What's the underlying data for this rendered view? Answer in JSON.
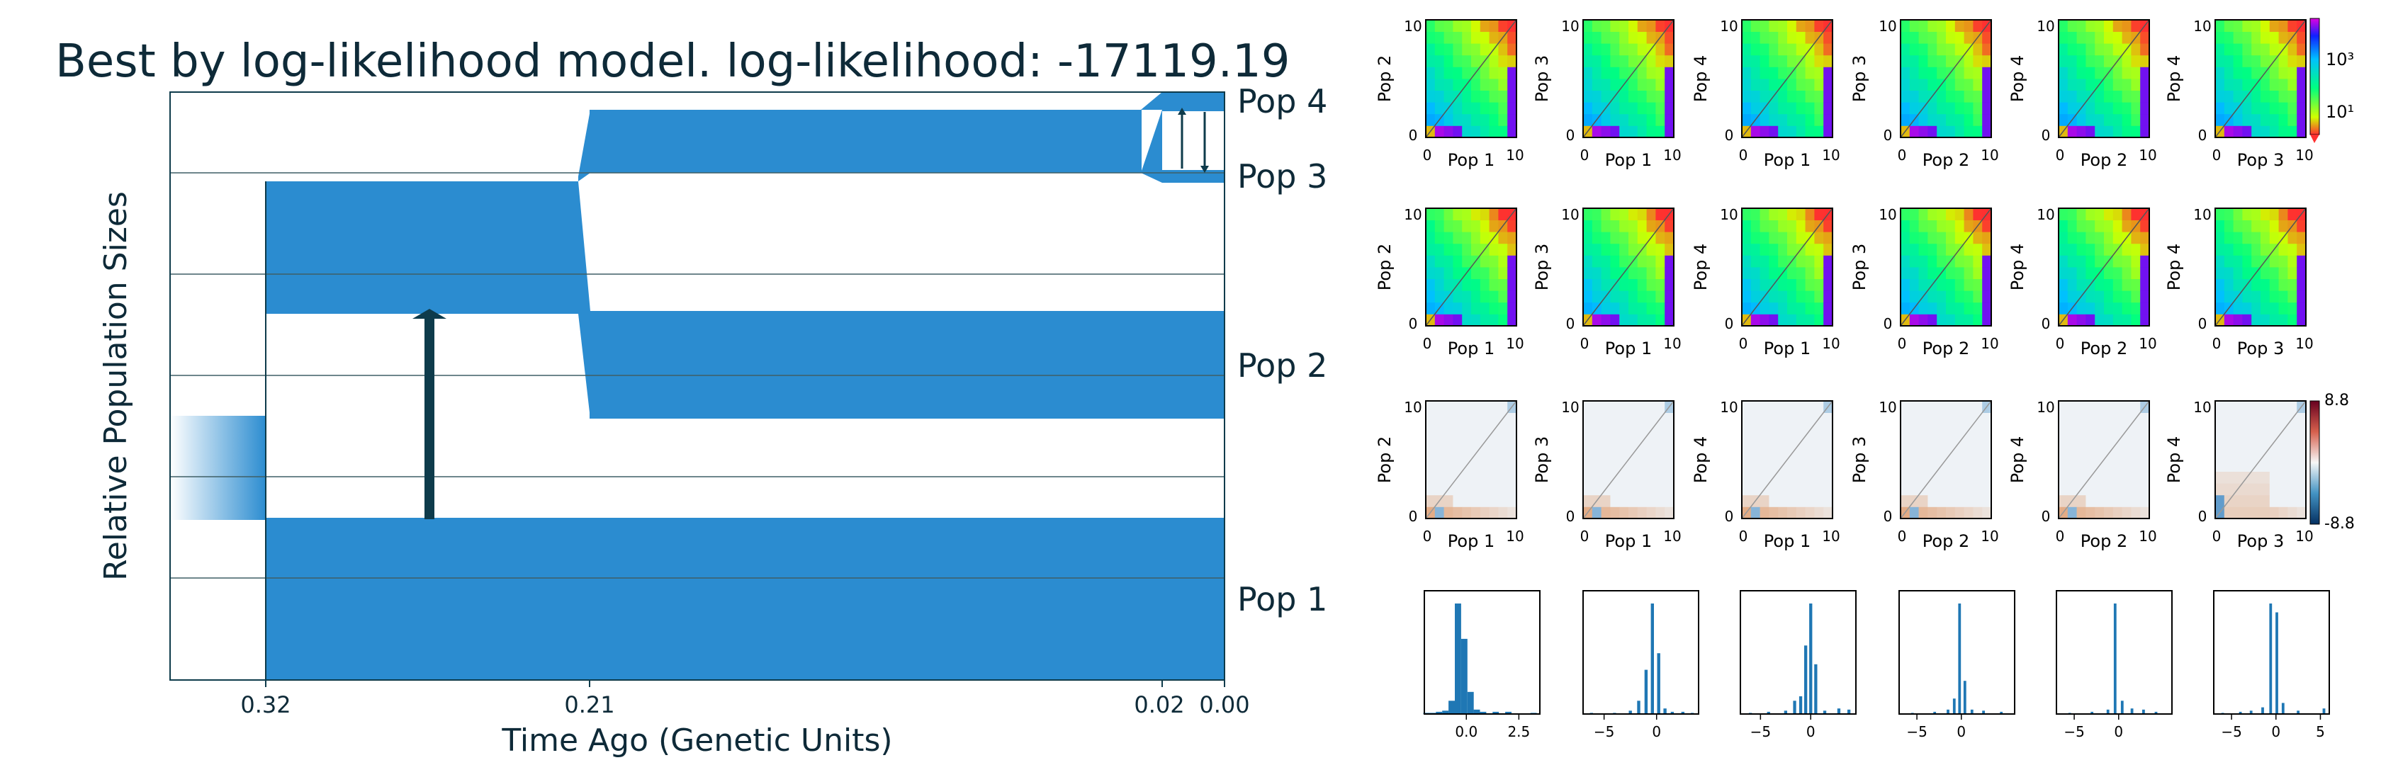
{
  "colors": {
    "population": "#2b8cd0",
    "migration_arrow": "#0e3b4b",
    "grid_line": "#3f5f66",
    "axis": "#0e3b4b",
    "panel_edge": "#000000",
    "histogram_bar": "#1f77b4",
    "resid_neg": "#2166ac",
    "resid_pos": "#f4a582"
  },
  "chart_data": [
    {
      "type": "area",
      "title": "Best by log-likelihood model. log-likelihood: -17119.19",
      "xlabel": "Time Ago (Genetic Units)",
      "ylabel": "Relative Population Sizes",
      "x_ticks": [
        "0.32",
        "0.21",
        "0.02",
        "0.00"
      ],
      "populations": [
        "Pop 4",
        "Pop 3",
        "Pop 2",
        "Pop 1"
      ],
      "epochs": [
        {
          "start": 0.32,
          "end": 0.21,
          "sizes": {
            "Pop 1": 1.0,
            "Pop 2": 1.0
          },
          "merged_into": "Pop 1"
        },
        {
          "start": 0.21,
          "end": 0.02,
          "sizes": {
            "Pop 1": 1.0,
            "Pop 2": 1.0,
            "Pop 3": 0.6
          }
        },
        {
          "start": 0.02,
          "end": 0.0,
          "sizes": {
            "Pop 1": 1.0,
            "Pop 2": 1.0,
            "Pop 3": 0.1,
            "Pop 4": 0.15
          }
        }
      ],
      "migration_arrows": [
        {
          "time": 0.27,
          "from": "Pop 1",
          "to": "Pop 2"
        },
        {
          "time": 0.01,
          "from": "Pop 3",
          "to": "Pop 4"
        },
        {
          "time": 0.004,
          "from": "Pop 4",
          "to": "Pop 3"
        }
      ]
    },
    {
      "type": "heatmap",
      "panel_grid": {
        "rows": 3,
        "cols": 6
      },
      "row_roles": [
        "data",
        "model",
        "residuals"
      ],
      "pairs": [
        {
          "x": "Pop 1",
          "y": "Pop 2"
        },
        {
          "x": "Pop 1",
          "y": "Pop 3"
        },
        {
          "x": "Pop 1",
          "y": "Pop 4"
        },
        {
          "x": "Pop 2",
          "y": "Pop 3"
        },
        {
          "x": "Pop 2",
          "y": "Pop 4"
        },
        {
          "x": "Pop 3",
          "y": "Pop 4"
        }
      ],
      "axis_ticks": [
        "0",
        "10"
      ],
      "colorbar_sfs": {
        "scale": "log",
        "tick_labels": [
          "10³",
          "10¹"
        ]
      },
      "colorbar_resid": {
        "tick_labels": [
          "8.8",
          "-8.8"
        ],
        "range": [
          -8.8,
          8.8
        ]
      }
    },
    {
      "type": "bar",
      "title": "",
      "panels": [
        {
          "ticks": [
            "0.0",
            "2.5"
          ],
          "xlim": [
            -2.0,
            3.5
          ],
          "bins": [
            [
              -1.9,
              0.01
            ],
            [
              -1.6,
              0.01
            ],
            [
              -1.3,
              0.02
            ],
            [
              -1.0,
              0.03
            ],
            [
              -0.7,
              0.12
            ],
            [
              -0.4,
              1.0
            ],
            [
              -0.1,
              0.68
            ],
            [
              0.2,
              0.2
            ],
            [
              0.5,
              0.04
            ],
            [
              0.8,
              0.02
            ],
            [
              1.4,
              0.02
            ],
            [
              2.0,
              0.02
            ],
            [
              3.2,
              0.01
            ]
          ]
        },
        {
          "ticks": [
            "-5",
            "0"
          ],
          "xlim": [
            -7.0,
            4.0
          ],
          "bins": [
            [
              -6.2,
              0.01
            ],
            [
              -4.0,
              0.01
            ],
            [
              -2.5,
              0.03
            ],
            [
              -1.7,
              0.12
            ],
            [
              -1.0,
              0.4
            ],
            [
              -0.4,
              1.0
            ],
            [
              0.2,
              0.55
            ],
            [
              0.8,
              0.05
            ],
            [
              1.5,
              0.02
            ],
            [
              2.5,
              0.02
            ],
            [
              3.4,
              0.01
            ]
          ]
        },
        {
          "ticks": [
            "-5",
            "0"
          ],
          "xlim": [
            -7.0,
            4.5
          ],
          "bins": [
            [
              -6.0,
              0.01
            ],
            [
              -4.2,
              0.02
            ],
            [
              -2.5,
              0.03
            ],
            [
              -1.6,
              0.12
            ],
            [
              -1.0,
              0.16
            ],
            [
              -0.5,
              0.62
            ],
            [
              0.0,
              1.0
            ],
            [
              0.5,
              0.45
            ],
            [
              1.4,
              0.03
            ],
            [
              2.8,
              0.05
            ],
            [
              3.8,
              0.04
            ]
          ]
        },
        {
          "ticks": [
            "-5",
            "0"
          ],
          "xlim": [
            -7.0,
            6.0
          ],
          "bins": [
            [
              -5.5,
              0.01
            ],
            [
              -3.0,
              0.02
            ],
            [
              -1.5,
              0.04
            ],
            [
              -0.8,
              0.14
            ],
            [
              -0.2,
              1.0
            ],
            [
              0.4,
              0.3
            ],
            [
              1.2,
              0.04
            ],
            [
              2.5,
              0.03
            ],
            [
              4.5,
              0.02
            ]
          ]
        },
        {
          "ticks": [
            "-5",
            "0"
          ],
          "xlim": [
            -7.0,
            6.0
          ],
          "bins": [
            [
              -5.5,
              0.01
            ],
            [
              -3.0,
              0.02
            ],
            [
              -1.2,
              0.04
            ],
            [
              -0.4,
              1.0
            ],
            [
              0.4,
              0.12
            ],
            [
              1.5,
              0.05
            ],
            [
              2.8,
              0.04
            ],
            [
              4.2,
              0.02
            ]
          ]
        },
        {
          "ticks": [
            "-5",
            "0",
            "5"
          ],
          "xlim": [
            -7.0,
            6.0
          ],
          "bins": [
            [
              -6.0,
              0.01
            ],
            [
              -4.0,
              0.02
            ],
            [
              -2.8,
              0.03
            ],
            [
              -1.5,
              0.06
            ],
            [
              -0.6,
              1.0
            ],
            [
              0.1,
              0.92
            ],
            [
              0.8,
              0.1
            ],
            [
              2.5,
              0.03
            ],
            [
              5.4,
              0.05
            ]
          ]
        }
      ]
    }
  ]
}
